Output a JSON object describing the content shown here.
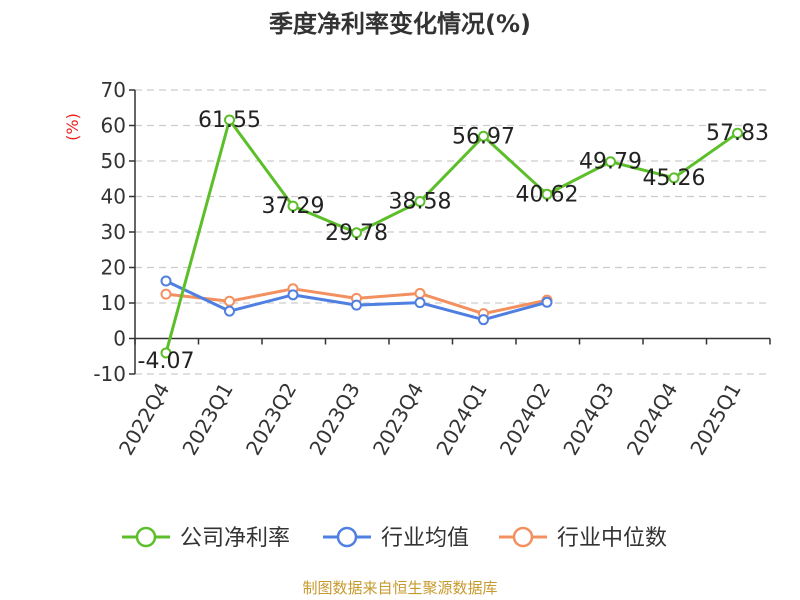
{
  "chart_data": {
    "type": "line",
    "title": "季度净利率变化情况(%)",
    "ylabel": "(%)",
    "xlabel": "",
    "categories": [
      "2022Q4",
      "2023Q1",
      "2023Q2",
      "2023Q3",
      "2023Q4",
      "2024Q1",
      "2024Q2",
      "2024Q3",
      "2024Q4",
      "2025Q1"
    ],
    "ylim": [
      -10,
      70
    ],
    "yticks": [
      -10,
      0,
      10,
      20,
      30,
      40,
      50,
      60,
      70
    ],
    "grid": true,
    "legend_position": "bottom",
    "series": [
      {
        "name": "公司净利率",
        "color": "#5cbf2a",
        "values": [
          -4.07,
          61.55,
          37.29,
          29.78,
          38.58,
          56.97,
          40.62,
          49.79,
          45.26,
          57.83
        ],
        "labels": [
          "-4.07",
          "61.55",
          "37.29",
          "29.78",
          "38.58",
          "56.97",
          "40.62",
          "49.79",
          "45.26",
          "57.83"
        ]
      },
      {
        "name": "行业均值",
        "color": "#4f7fe0",
        "values": [
          16.2,
          7.7,
          12.3,
          9.4,
          10.1,
          5.3,
          10.2,
          null,
          null,
          null
        ]
      },
      {
        "name": "行业中位数",
        "color": "#f39060",
        "values": [
          12.5,
          10.5,
          14.0,
          11.3,
          12.7,
          7.0,
          10.8,
          null,
          null,
          null
        ]
      }
    ],
    "source": "制图数据来自恒生聚源数据库"
  }
}
